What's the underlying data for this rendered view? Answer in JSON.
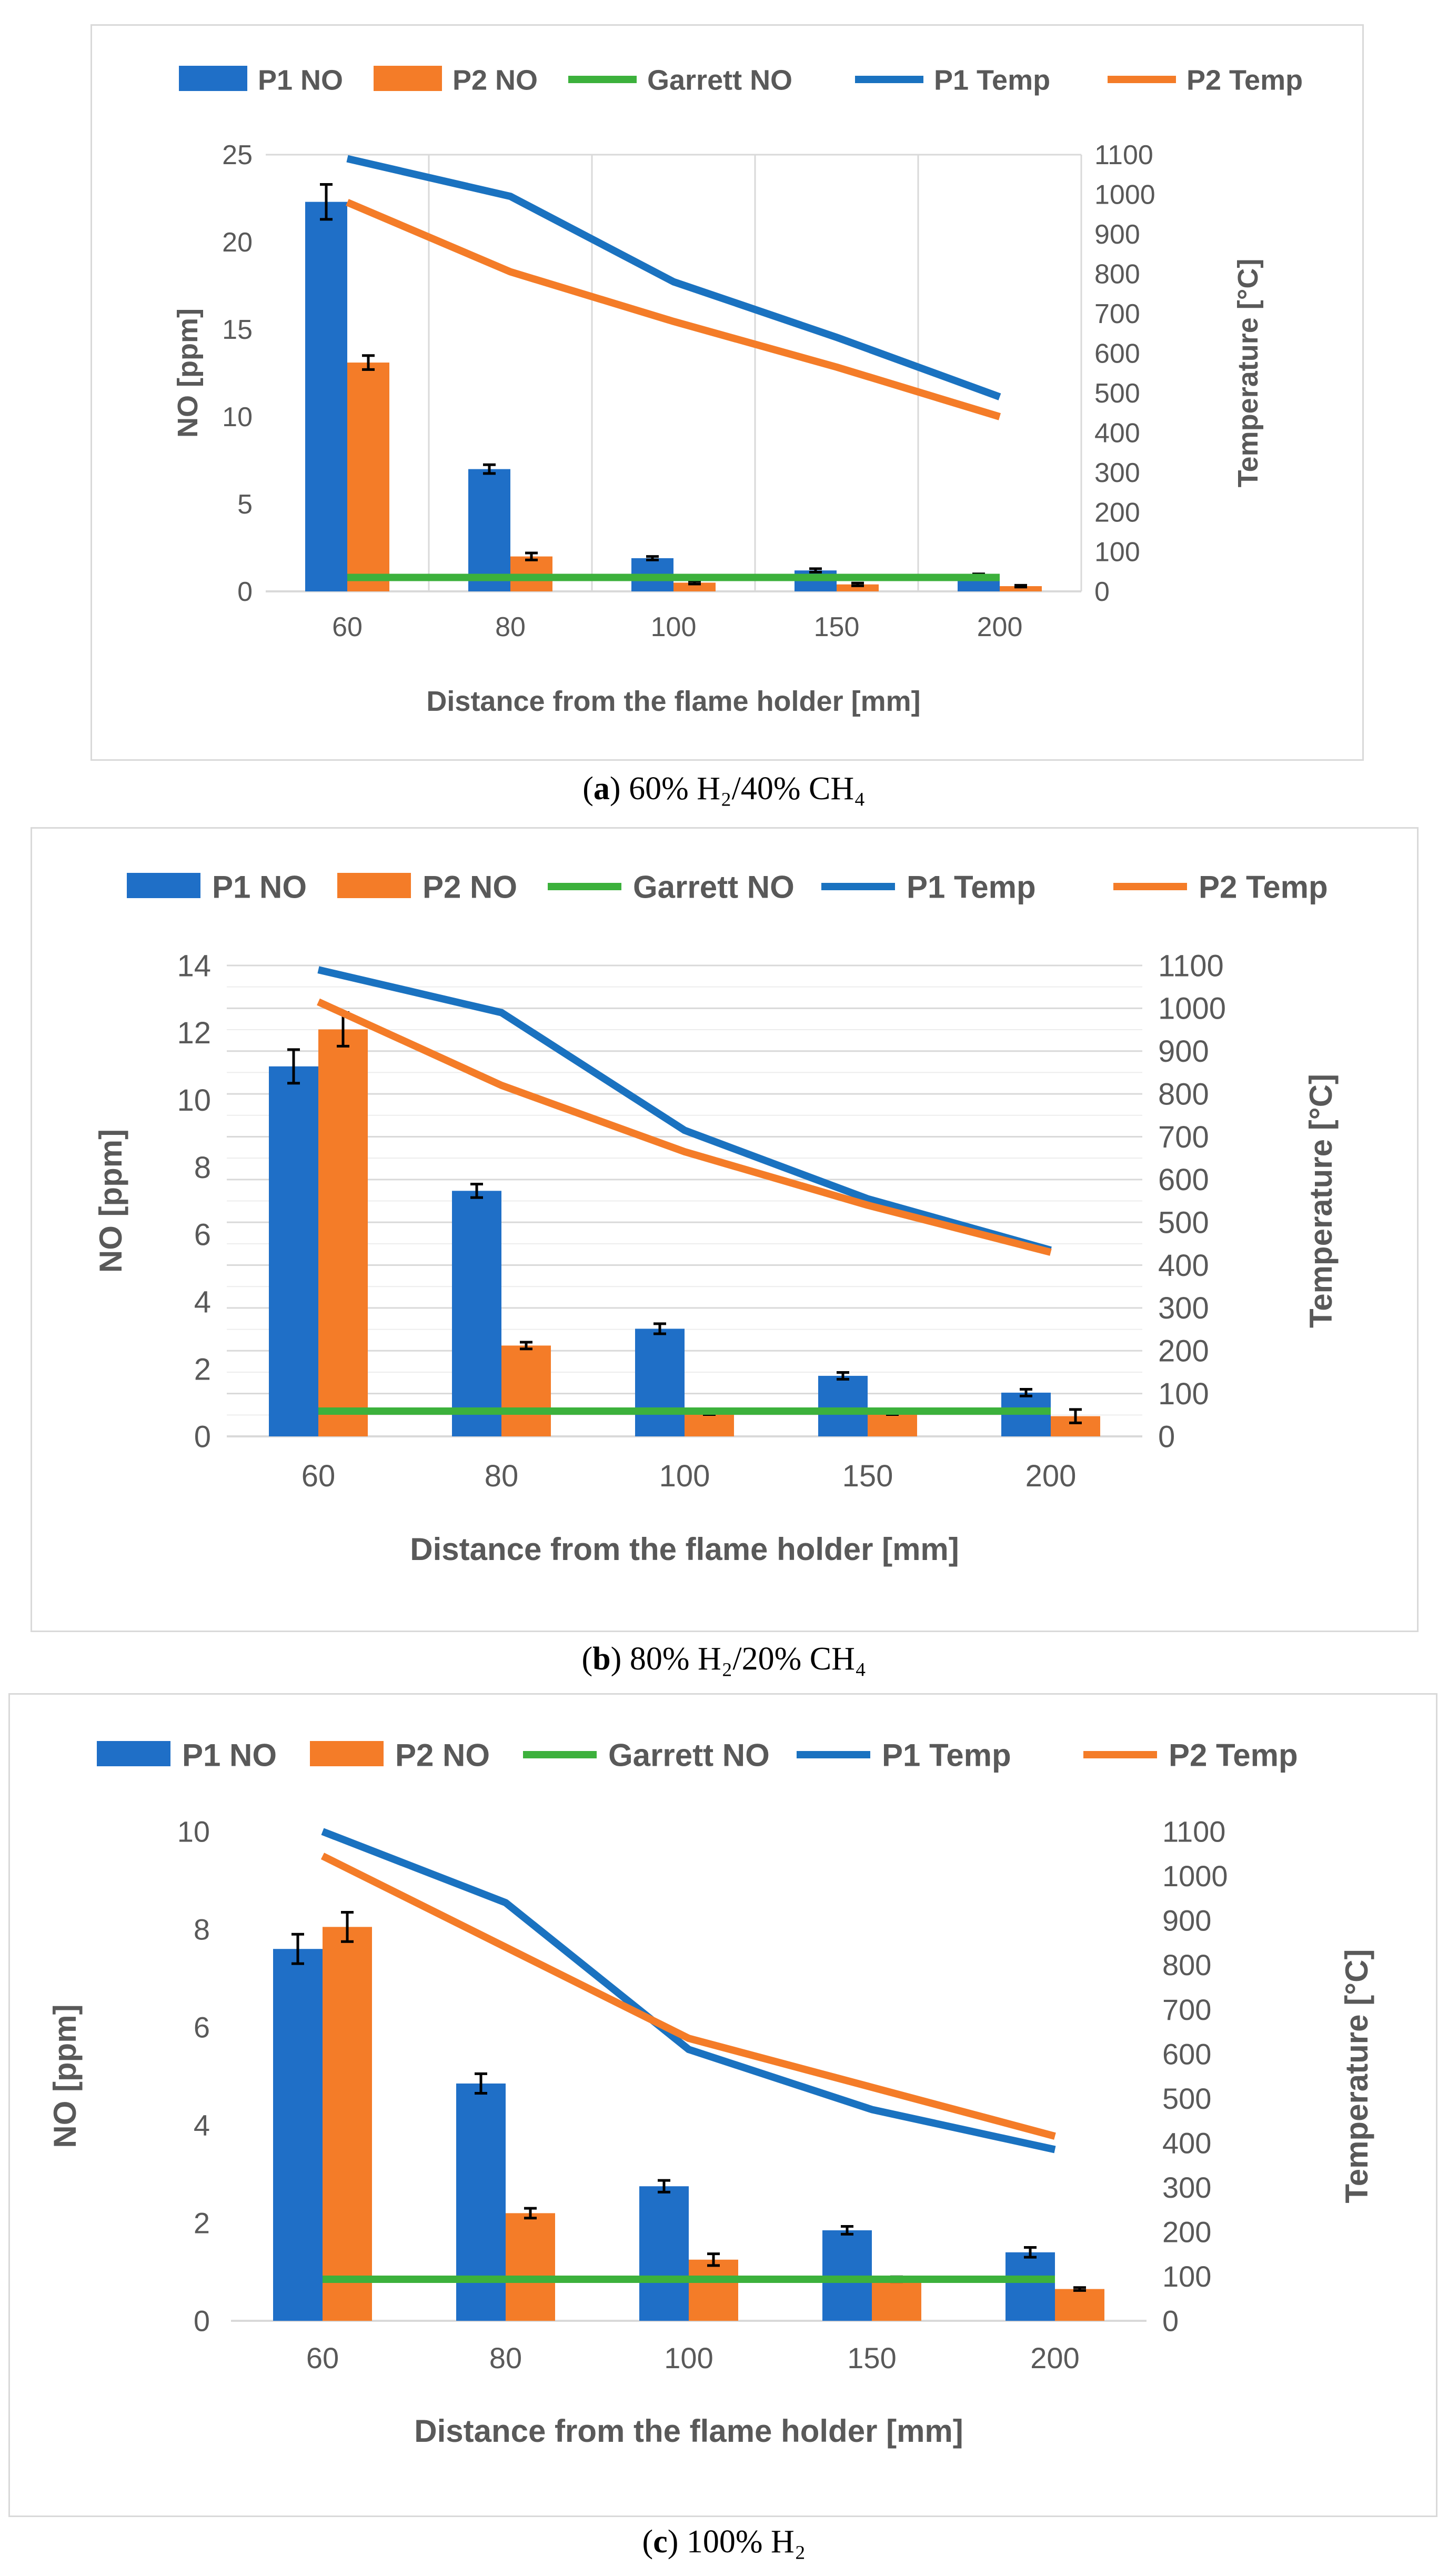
{
  "colors": {
    "p1": "#1f6fc7",
    "p2": "#f47c28",
    "garrett": "#3cb13c",
    "p1_temp": "#1a72c0",
    "p2_temp": "#f47c28",
    "grid": "#d9d9d9",
    "text": "#595959"
  },
  "chart_data": [
    {
      "type": "bar",
      "title": "",
      "legend": [
        "P1 NO",
        "P2 NO",
        "Garrett NO",
        "P1 Temp",
        "P2 Temp"
      ],
      "legend_position": "top",
      "categories": [
        "60",
        "80",
        "100",
        "150",
        "200"
      ],
      "xlabel": "Distance from the flame holder [mm]",
      "ylabel": "NO [ppm]",
      "y2label": "Temperature [°C]",
      "ylim": [
        0,
        25
      ],
      "yticks": [
        0,
        5,
        10,
        15,
        20,
        25
      ],
      "y2lim": [
        0,
        1100
      ],
      "y2ticks": [
        0,
        100,
        200,
        300,
        400,
        500,
        600,
        700,
        800,
        900,
        1000,
        1100
      ],
      "grid": "vertical",
      "series": [
        {
          "name": "P1 NO",
          "kind": "bar",
          "values": [
            22.3,
            7.0,
            1.9,
            1.2,
            0.9
          ],
          "errors": [
            1.0,
            0.25,
            0.1,
            0.1,
            0.1
          ]
        },
        {
          "name": "P2 NO",
          "kind": "bar",
          "values": [
            13.1,
            2.0,
            0.5,
            0.4,
            0.3
          ],
          "errors": [
            0.4,
            0.2,
            0.08,
            0.08,
            0.05
          ]
        },
        {
          "name": "Garrett NO",
          "kind": "line",
          "axis": "left",
          "values": [
            0.8,
            0.8,
            0.8,
            0.8,
            0.8
          ]
        },
        {
          "name": "P1 Temp",
          "kind": "line",
          "axis": "right",
          "values": [
            1090,
            995,
            780,
            640,
            490
          ]
        },
        {
          "name": "P2 Temp",
          "kind": "line",
          "axis": "right",
          "values": [
            980,
            805,
            680,
            565,
            440
          ]
        }
      ],
      "caption": {
        "label": "a",
        "text": "60% H₂/40% CH₄"
      }
    },
    {
      "type": "bar",
      "title": "",
      "legend": [
        "P1 NO",
        "P2 NO",
        "Garrett NO",
        "P1 Temp",
        "P2 Temp"
      ],
      "legend_position": "top",
      "categories": [
        "60",
        "80",
        "100",
        "150",
        "200"
      ],
      "xlabel": "Distance from the flame holder [mm]",
      "ylabel": "NO [ppm]",
      "y2label": "Temperature [°C]",
      "ylim": [
        0,
        14
      ],
      "yticks": [
        0,
        2,
        4,
        6,
        8,
        10,
        12,
        14
      ],
      "y2lim": [
        0,
        1100
      ],
      "y2ticks": [
        0,
        100,
        200,
        300,
        400,
        500,
        600,
        700,
        800,
        900,
        1000,
        1100
      ],
      "grid": "horizontal",
      "series": [
        {
          "name": "P1 NO",
          "kind": "bar",
          "values": [
            11.0,
            7.3,
            3.2,
            1.8,
            1.3
          ],
          "errors": [
            0.5,
            0.2,
            0.15,
            0.1,
            0.1
          ]
        },
        {
          "name": "P2 NO",
          "kind": "bar",
          "values": [
            12.1,
            2.7,
            0.7,
            0.7,
            0.6
          ],
          "errors": [
            0.5,
            0.1,
            0.05,
            0.05,
            0.2
          ]
        },
        {
          "name": "Garrett NO",
          "kind": "line",
          "axis": "left",
          "values": [
            0.75,
            0.75,
            0.75,
            0.75,
            0.75
          ]
        },
        {
          "name": "P1 Temp",
          "kind": "line",
          "axis": "right",
          "values": [
            1090,
            990,
            715,
            555,
            435
          ]
        },
        {
          "name": "P2 Temp",
          "kind": "line",
          "axis": "right",
          "values": [
            1015,
            820,
            665,
            540,
            430
          ]
        }
      ],
      "caption": {
        "label": "b",
        "text": "80% H₂/20% CH₄"
      }
    },
    {
      "type": "bar",
      "title": "",
      "legend": [
        "P1 NO",
        "P2 NO",
        "Garrett NO",
        "P1 Temp",
        "P2 Temp"
      ],
      "legend_position": "top",
      "categories": [
        "60",
        "80",
        "100",
        "150",
        "200"
      ],
      "xlabel": "Distance from the flame holder [mm]",
      "ylabel": "NO [ppm]",
      "y2label": "Temperature [°C]",
      "ylim": [
        0,
        10
      ],
      "yticks": [
        0,
        2,
        4,
        6,
        8,
        10
      ],
      "y2lim": [
        0,
        1100
      ],
      "y2ticks": [
        0,
        100,
        200,
        300,
        400,
        500,
        600,
        700,
        800,
        900,
        1000,
        1100
      ],
      "grid": "none",
      "series": [
        {
          "name": "P1 NO",
          "kind": "bar",
          "values": [
            7.6,
            4.85,
            2.75,
            1.85,
            1.4
          ],
          "errors": [
            0.3,
            0.2,
            0.12,
            0.08,
            0.1
          ]
        },
        {
          "name": "P2 NO",
          "kind": "bar",
          "values": [
            8.05,
            2.2,
            1.25,
            0.85,
            0.65
          ],
          "errors": [
            0.3,
            0.1,
            0.12,
            0.05,
            0.03
          ]
        },
        {
          "name": "Garrett NO",
          "kind": "line",
          "axis": "left",
          "values": [
            0.85,
            0.85,
            0.85,
            0.85,
            0.85
          ]
        },
        {
          "name": "P1 Temp",
          "kind": "line",
          "axis": "right",
          "values": [
            1100,
            940,
            610,
            475,
            385
          ]
        },
        {
          "name": "P2 Temp",
          "kind": "line",
          "axis": "right",
          "values": [
            1045,
            840,
            635,
            525,
            415
          ]
        }
      ],
      "caption": {
        "label": "c",
        "text": "100% H₂"
      }
    }
  ]
}
